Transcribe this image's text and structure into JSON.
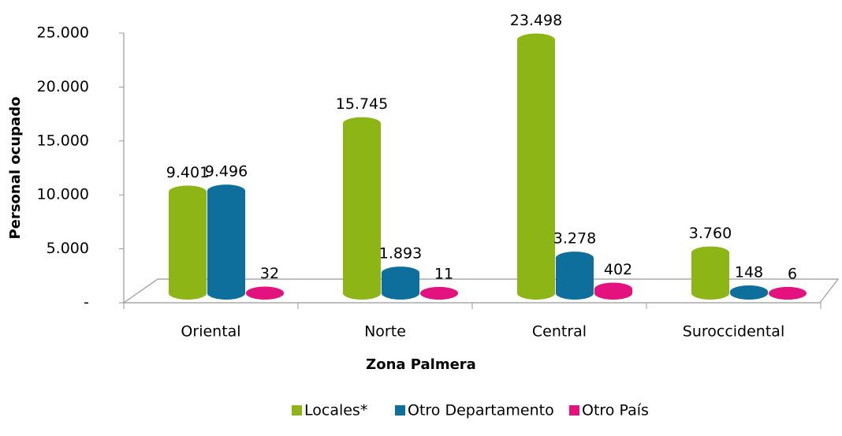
{
  "chart_data": {
    "type": "bar3d",
    "xlabel": "Zona Palmera",
    "ylabel": "Personal ocupado",
    "categories": [
      "Oriental",
      "Norte",
      "Central",
      "Suroccidental"
    ],
    "series": [
      {
        "name": "Locales*",
        "color": "#8db516",
        "values": [
          9401,
          15745,
          23498,
          3760
        ],
        "value_labels": [
          "9.401",
          "15.745",
          "23.498",
          "3.760"
        ]
      },
      {
        "name": "Otro Departamento",
        "color": "#0e6e9c",
        "values": [
          9496,
          1893,
          3278,
          148
        ],
        "value_labels": [
          "9.496",
          "1.893",
          "3.278",
          "148"
        ]
      },
      {
        "name": "Otro País",
        "color": "#e3127f",
        "values": [
          32,
          11,
          402,
          6
        ],
        "value_labels": [
          "32",
          "11",
          "402",
          "6"
        ]
      }
    ],
    "ylim": [
      0,
      25000
    ],
    "yticks": [
      {
        "value": 0,
        "label": "-"
      },
      {
        "value": 5000,
        "label": "5.000"
      },
      {
        "value": 10000,
        "label": "10.000"
      },
      {
        "value": 15000,
        "label": "15.000"
      },
      {
        "value": 20000,
        "label": "20.000"
      },
      {
        "value": 25000,
        "label": "25.000"
      }
    ],
    "legend": "bottom"
  }
}
